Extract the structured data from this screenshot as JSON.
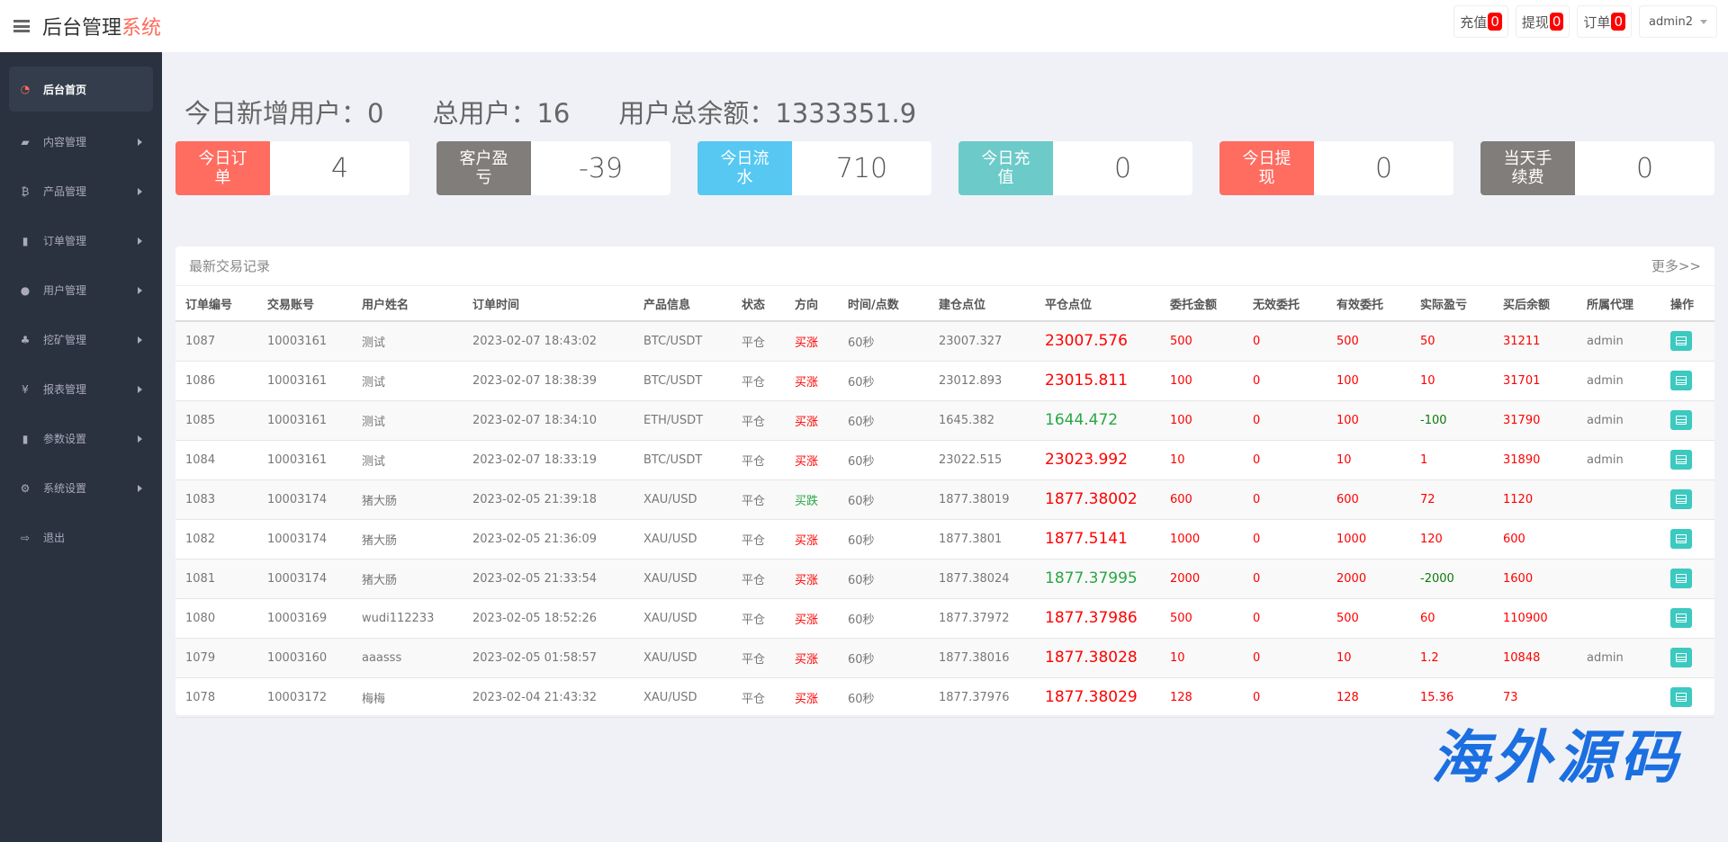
{
  "header": {
    "title_main": "后台管理",
    "title_accent": "系统",
    "buttons": [
      {
        "label": "充值",
        "count": "0"
      },
      {
        "label": "提现",
        "count": "0"
      },
      {
        "label": "订单",
        "count": "0"
      }
    ],
    "user": "admin2"
  },
  "sidebar": {
    "items": [
      {
        "label": "后台首页",
        "icon": "dashboard-icon"
      },
      {
        "label": "内容管理",
        "icon": "book-icon"
      },
      {
        "label": "产品管理",
        "icon": "bitcoin-icon"
      },
      {
        "label": "订单管理",
        "icon": "copy-icon"
      },
      {
        "label": "用户管理",
        "icon": "user-icon"
      },
      {
        "label": "挖矿管理",
        "icon": "sitemap-icon"
      },
      {
        "label": "报表管理",
        "icon": "yen-icon"
      },
      {
        "label": "参数设置",
        "icon": "copy-icon"
      },
      {
        "label": "系统设置",
        "icon": "gears-icon"
      },
      {
        "label": "退出",
        "icon": "sign-out-icon"
      }
    ]
  },
  "stats": {
    "new_users": "今日新增用户：0",
    "total_users": "总用户：16",
    "total_balance": "用户总余额：1333351.9"
  },
  "cards": [
    {
      "label": "今日订单",
      "value": "4",
      "color": "#ff6c60"
    },
    {
      "label": "客户盈亏",
      "value": "-39",
      "color": "#807d7b"
    },
    {
      "label": "今日流水",
      "value": "710",
      "color": "#57c8f2"
    },
    {
      "label": "今日充值",
      "value": "0",
      "color": "#6ccac9"
    },
    {
      "label": "今日提现",
      "value": "0",
      "color": "#ff6c60"
    },
    {
      "label": "当天手续费",
      "value": "0",
      "color": "#807d7b"
    }
  ],
  "panel": {
    "title": "最新交易记录",
    "more": "更多>>"
  },
  "table": {
    "columns": [
      "订单编号",
      "交易账号",
      "用户姓名",
      "订单时间",
      "产品信息",
      "状态",
      "方向",
      "时间/点数",
      "建仓点位",
      "平仓点位",
      "委托金额",
      "无效委托",
      "有效委托",
      "实际盈亏",
      "买后余额",
      "所属代理",
      "操作"
    ],
    "rows": [
      [
        "1087",
        "10003161",
        "测试",
        "2023-02-07 18:43:02",
        "BTC/USDT",
        "平仓",
        "买涨",
        "60秒",
        "23007.327",
        "23007.576",
        "500",
        "0",
        "500",
        "50",
        "31211",
        "admin"
      ],
      [
        "1086",
        "10003161",
        "测试",
        "2023-02-07 18:38:39",
        "BTC/USDT",
        "平仓",
        "买涨",
        "60秒",
        "23012.893",
        "23015.811",
        "100",
        "0",
        "100",
        "10",
        "31701",
        "admin"
      ],
      [
        "1085",
        "10003161",
        "测试",
        "2023-02-07 18:34:10",
        "ETH/USDT",
        "平仓",
        "买涨",
        "60秒",
        "1645.382",
        "1644.472",
        "100",
        "0",
        "100",
        "-100",
        "31790",
        "admin"
      ],
      [
        "1084",
        "10003161",
        "测试",
        "2023-02-07 18:33:19",
        "BTC/USDT",
        "平仓",
        "买涨",
        "60秒",
        "23022.515",
        "23023.992",
        "10",
        "0",
        "10",
        "1",
        "31890",
        "admin"
      ],
      [
        "1083",
        "10003174",
        "猪大肠",
        "2023-02-05 21:39:18",
        "XAU/USD",
        "平仓",
        "买跌",
        "60秒",
        "1877.38019",
        "1877.38002",
        "600",
        "0",
        "600",
        "72",
        "1120",
        ""
      ],
      [
        "1082",
        "10003174",
        "猪大肠",
        "2023-02-05 21:36:09",
        "XAU/USD",
        "平仓",
        "买涨",
        "60秒",
        "1877.3801",
        "1877.5141",
        "1000",
        "0",
        "1000",
        "120",
        "600",
        ""
      ],
      [
        "1081",
        "10003174",
        "猪大肠",
        "2023-02-05 21:33:54",
        "XAU/USD",
        "平仓",
        "买涨",
        "60秒",
        "1877.38024",
        "1877.37995",
        "2000",
        "0",
        "2000",
        "-2000",
        "1600",
        ""
      ],
      [
        "1080",
        "10003169",
        "wudi112233",
        "2023-02-05 18:52:26",
        "XAU/USD",
        "平仓",
        "买涨",
        "60秒",
        "1877.37972",
        "1877.37986",
        "500",
        "0",
        "500",
        "60",
        "110900",
        ""
      ],
      [
        "1079",
        "10003160",
        "aaasss",
        "2023-02-05 01:58:57",
        "XAU/USD",
        "平仓",
        "买涨",
        "60秒",
        "1877.38016",
        "1877.38028",
        "10",
        "0",
        "10",
        "1.2",
        "10848",
        "admin"
      ],
      [
        "1078",
        "10003172",
        "梅梅",
        "2023-02-04 21:43:32",
        "XAU/USD",
        "平仓",
        "买涨",
        "60秒",
        "1877.37976",
        "1877.38029",
        "128",
        "0",
        "128",
        "15.36",
        "73",
        ""
      ]
    ]
  },
  "watermark": "海外源码"
}
